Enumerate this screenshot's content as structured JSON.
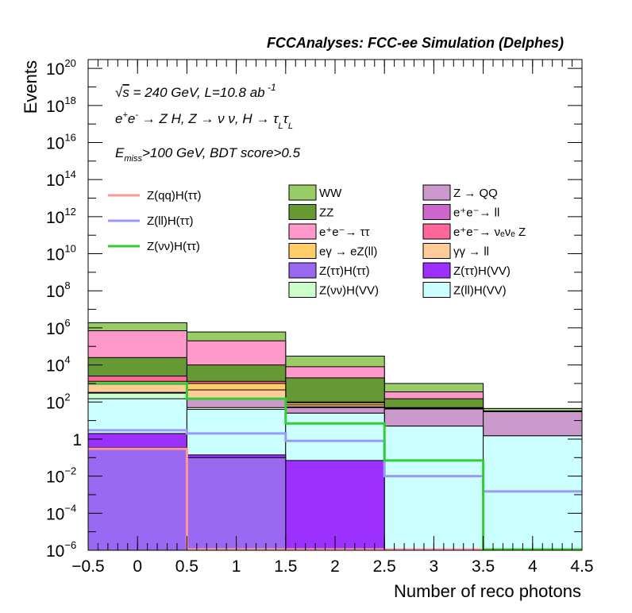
{
  "title": "FCCAnalyses: FCC-ee Simulation (Delphes)",
  "annotations": {
    "line1": "√s = 240 GeV, L=10.8 ab⁻¹",
    "line2": "e⁺e⁻ → Z H, Z → νν, H → τ_L τ_L",
    "line3": "E_miss>100 GeV, BDT score>0.5"
  },
  "chart_data": {
    "type": "stacked-histogram",
    "title": "FCCAnalyses: FCC-ee Simulation (Delphes)",
    "xlabel": "Number of reco photons",
    "ylabel": "Events",
    "xlim": [
      -0.5,
      4.5
    ],
    "ylim": [
      1e-06,
      3e+20
    ],
    "yscale": "log",
    "x_bin_edges": [
      -0.5,
      0.5,
      1.5,
      2.5,
      3.5,
      4.5
    ],
    "x_ticks": [
      {
        "v": -0.5,
        "label": "−0.5"
      },
      {
        "v": 0,
        "label": "0"
      },
      {
        "v": 0.5,
        "label": "0.5"
      },
      {
        "v": 1,
        "label": "1"
      },
      {
        "v": 1.5,
        "label": "1.5"
      },
      {
        "v": 2,
        "label": "2"
      },
      {
        "v": 2.5,
        "label": "2.5"
      },
      {
        "v": 3,
        "label": "3"
      },
      {
        "v": 3.5,
        "label": "3.5"
      },
      {
        "v": 4,
        "label": "4"
      },
      {
        "v": 4.5,
        "label": "4.5"
      }
    ],
    "y_ticks": [
      {
        "exp": -6,
        "base": "10",
        "sup": "−6"
      },
      {
        "exp": -4,
        "base": "10",
        "sup": "−4"
      },
      {
        "exp": -2,
        "base": "10",
        "sup": "−2"
      },
      {
        "exp": 0,
        "base": "1",
        "sup": ""
      },
      {
        "exp": 2,
        "base": "10",
        "sup": "2"
      },
      {
        "exp": 4,
        "base": "10",
        "sup": "4"
      },
      {
        "exp": 6,
        "base": "10",
        "sup": "6"
      },
      {
        "exp": 8,
        "base": "10",
        "sup": "8"
      },
      {
        "exp": 10,
        "base": "10",
        "sup": "10"
      },
      {
        "exp": 12,
        "base": "10",
        "sup": "12"
      },
      {
        "exp": 14,
        "base": "10",
        "sup": "14"
      },
      {
        "exp": 16,
        "base": "10",
        "sup": "16"
      },
      {
        "exp": 18,
        "base": "10",
        "sup": "18"
      },
      {
        "exp": 20,
        "base": "10",
        "sup": "20"
      }
    ],
    "stack_note": "cumulative stack heights per bin (Events), bottom to top",
    "stack": [
      {
        "name": "Z(ττ)H(ττ)",
        "color": "#9b68f2",
        "values": [
          0.35,
          0.1,
          0.0,
          0.0,
          0.0
        ]
      },
      {
        "name": "Z(ττ)H(VV)",
        "color": "#9b30ff",
        "values": [
          2.0,
          0.14,
          0.07,
          0.0,
          0.0
        ]
      },
      {
        "name": "Z(ll)H(VV)",
        "color": "#ccffff",
        "values": [
          150,
          40,
          25,
          5.0,
          1.5
        ]
      },
      {
        "name": "Z(νν)H(VV)",
        "color": "#ccffcc",
        "values": [
          300,
          50,
          25,
          5.0,
          1.5
        ]
      },
      {
        "name": "Z → QQ",
        "color": "#cc99cc",
        "values": [
          320,
          150,
          50,
          42,
          30
        ]
      },
      {
        "name": "e⁺e⁻→ ll",
        "color": "#cc66cc",
        "values": [
          330,
          160,
          55,
          45,
          31
        ]
      },
      {
        "name": "γγ → ll",
        "color": "#ffcc99",
        "values": [
          900,
          450,
          70,
          46,
          31
        ]
      },
      {
        "name": "eγ → eZ(ll)",
        "color": "#ffcc66",
        "values": [
          1300,
          1000,
          90,
          47,
          31
        ]
      },
      {
        "name": "e⁺e⁻→ νₑνₑ Z",
        "color": "#ff6699",
        "values": [
          2500,
          1300,
          100,
          50,
          31
        ]
      },
      {
        "name": "ZZ",
        "color": "#669933",
        "values": [
          25000,
          10000,
          2000,
          150,
          32
        ]
      },
      {
        "name": "e⁺e⁻→ ττ",
        "color": "#ff99cc",
        "values": [
          700000,
          200000,
          8000,
          350,
          33
        ]
      },
      {
        "name": "WW",
        "color": "#99cc66",
        "values": [
          1900000,
          600000,
          30000,
          1000,
          45
        ]
      }
    ],
    "signals": [
      {
        "name": "Z(qq)H(ττ)",
        "color": "#ff9999",
        "values": [
          0.3,
          1e-06,
          1e-06,
          1e-06,
          1e-06
        ]
      },
      {
        "name": "Z(ll)H(ττ)",
        "color": "#9999ff",
        "values": [
          3.0,
          2.0,
          0.8,
          0.01,
          0.0015
        ]
      },
      {
        "name": "Z(νν)H(ττ)",
        "color": "#33cc33",
        "values": [
          1000,
          150,
          7.0,
          0.07,
          1e-06
        ]
      }
    ],
    "legend": {
      "placement": "top",
      "signal_entries": [
        "Z(qq)H(ττ)",
        "Z(ll)H(ττ)",
        "Z(νν)H(ττ)"
      ],
      "background_col1": [
        "WW",
        "ZZ",
        "e⁺e⁻→ ττ",
        "eγ → eZ(ll)",
        "Z(ττ)H(ττ)",
        "Z(νν)H(VV)"
      ],
      "background_col2": [
        "Z → QQ",
        "e⁺e⁻→ ll",
        "e⁺e⁻→ νₑνₑ Z",
        "γγ → ll",
        "Z(ττ)H(VV)",
        "Z(ll)H(VV)"
      ]
    }
  }
}
